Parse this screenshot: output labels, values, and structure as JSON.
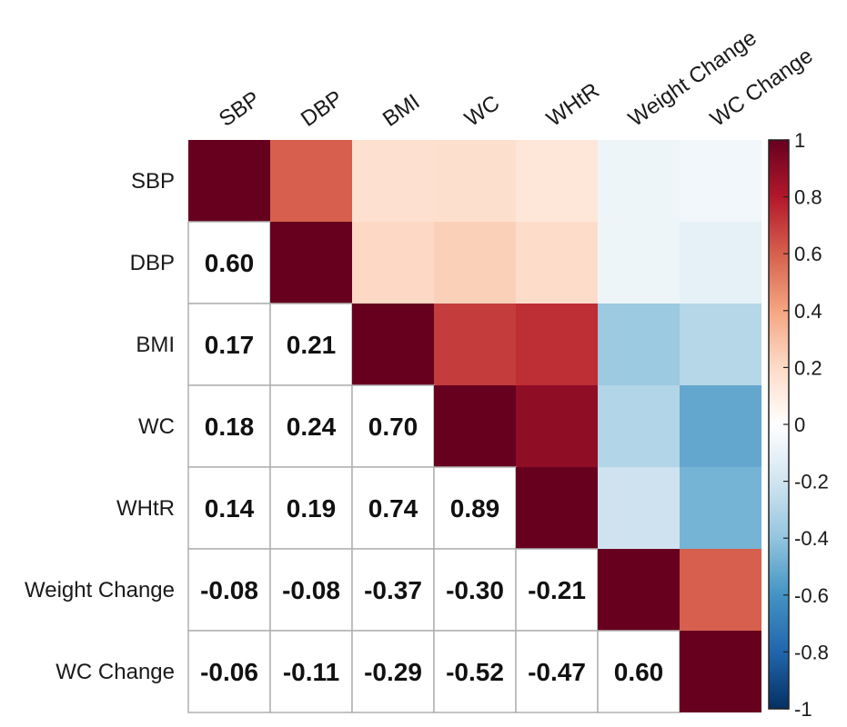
{
  "chart_data": {
    "type": "heatmap",
    "title": "",
    "variables": [
      "SBP",
      "DBP",
      "BMI",
      "WC",
      "WHtR",
      "Weight Change",
      "WC Change"
    ],
    "matrix": [
      [
        1.0,
        0.6,
        0.17,
        0.18,
        0.14,
        -0.08,
        -0.06
      ],
      [
        0.6,
        1.0,
        0.21,
        0.24,
        0.19,
        -0.08,
        -0.11
      ],
      [
        0.17,
        0.21,
        1.0,
        0.7,
        0.74,
        -0.37,
        -0.29
      ],
      [
        0.18,
        0.24,
        0.7,
        1.0,
        0.89,
        -0.3,
        -0.52
      ],
      [
        0.14,
        0.19,
        0.74,
        0.89,
        1.0,
        -0.21,
        -0.47
      ],
      [
        -0.08,
        -0.08,
        -0.37,
        -0.3,
        -0.21,
        1.0,
        0.6
      ],
      [
        -0.06,
        -0.11,
        -0.29,
        -0.52,
        -0.47,
        0.6,
        1.0
      ]
    ],
    "lower_triangle_display": "number",
    "upper_triangle_display": "color",
    "colorbar": {
      "range": [
        -1,
        1
      ],
      "ticks": [
        "1",
        "0.8",
        "0.6",
        "0.4",
        "0.2",
        "0",
        "-0.2",
        "-0.4",
        "-0.6",
        "-0.8",
        "-1"
      ],
      "tick_values": [
        1,
        0.8,
        0.6,
        0.4,
        0.2,
        0,
        -0.2,
        -0.4,
        -0.6,
        -0.8,
        -1
      ],
      "placement": "right"
    },
    "colors": {
      "negative_end": "#053061",
      "neutral": "#ffffff",
      "positive_end": "#67001f",
      "grid": "#b0b0b0"
    }
  }
}
